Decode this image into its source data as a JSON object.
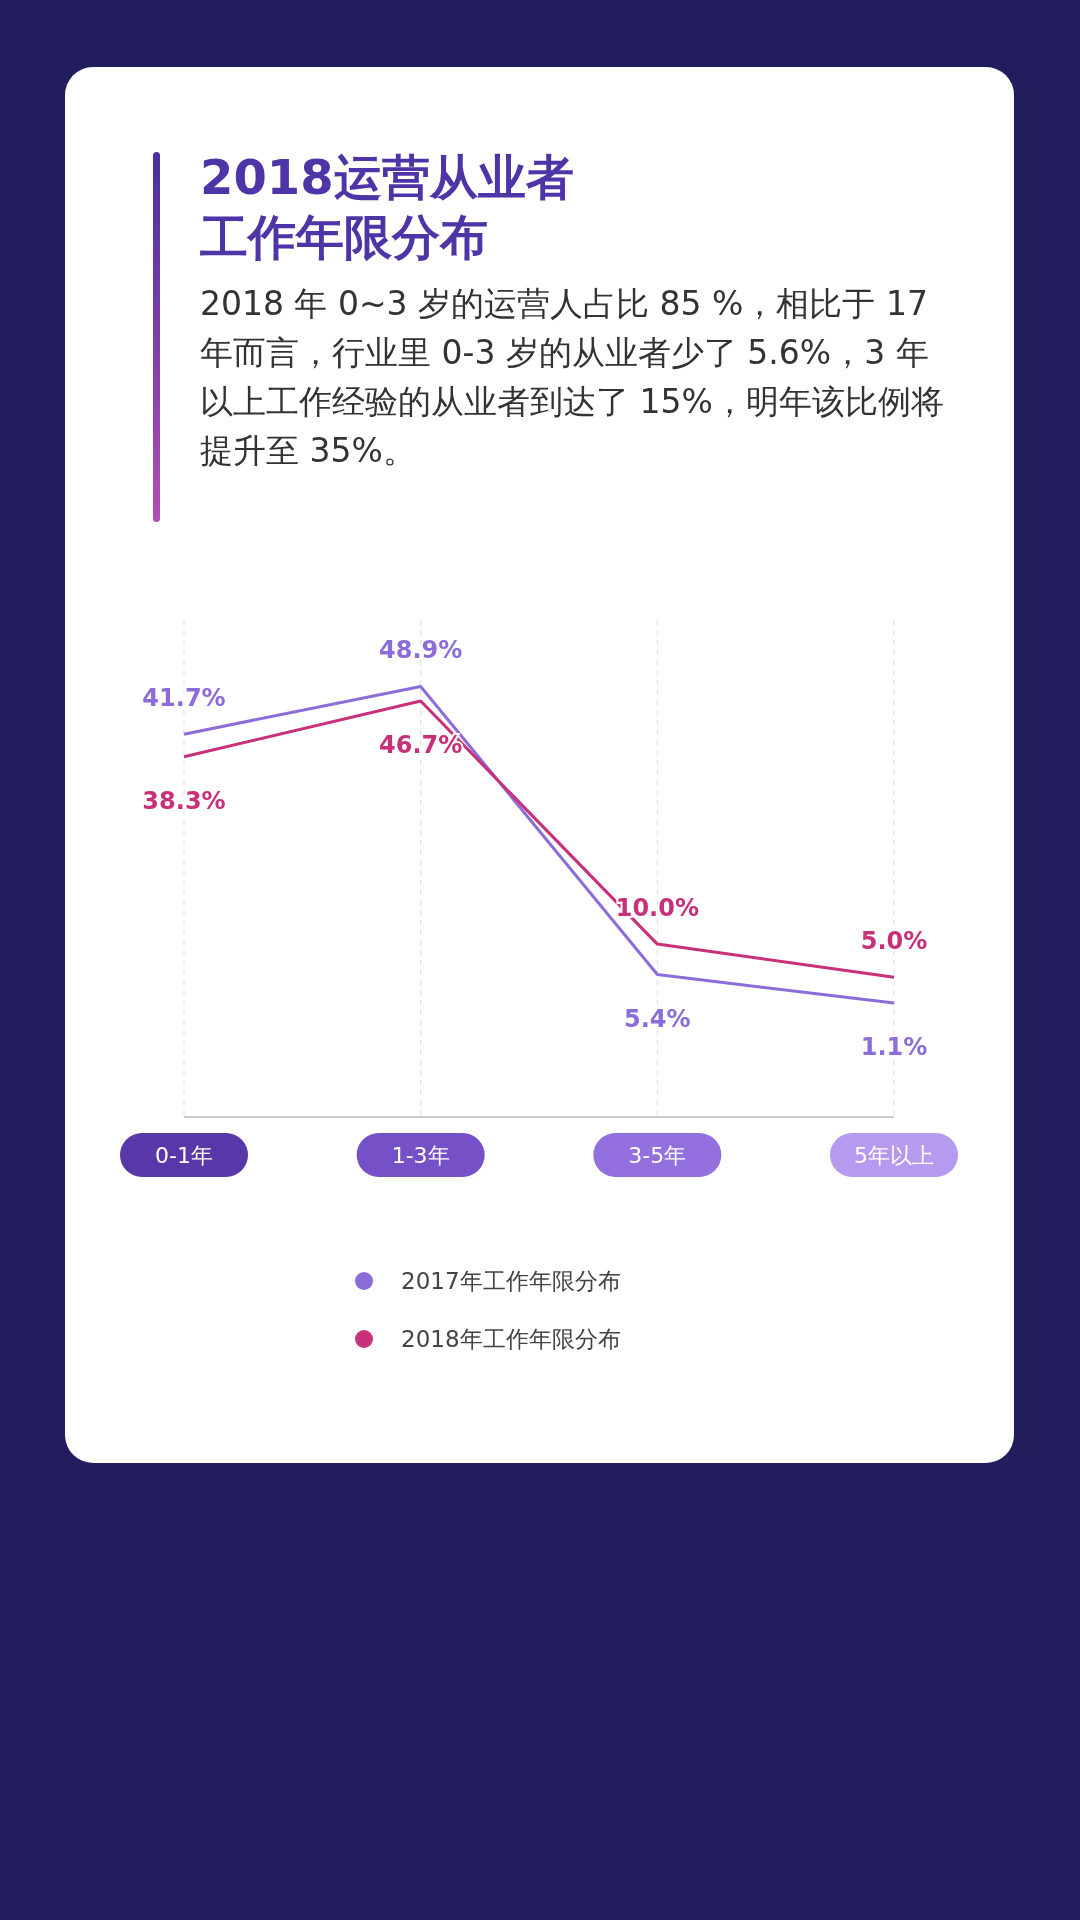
{
  "chart_data": {
    "type": "line",
    "title": "2018运营从业者工作年限分布",
    "subtitle": "2018 年 0~3 岁的运营人占比 85 %，相比于 17 年而言，行业里 0-3 岁的从业者少了 5.6%，3 年以上工作经验的从业者到达了 15%，明年该比例将提升至 35%。",
    "categories": [
      "0-1年",
      "1-3年",
      "3-5年",
      "5年以上"
    ],
    "series": [
      {
        "name": "2017年工作年限分布",
        "color": "#8c6cd8",
        "values": [
          41.7,
          48.9,
          5.4,
          1.1
        ],
        "value_labels": [
          "41.7%",
          "48.9%",
          "5.4%",
          "1.1%"
        ]
      },
      {
        "name": "2018年工作年限分布",
        "color": "#c8307a",
        "values": [
          38.3,
          46.7,
          10.0,
          5.0
        ],
        "value_labels": [
          "38.3%",
          "46.7%",
          "10.0%",
          "5.0%"
        ]
      }
    ],
    "grid": "x",
    "legend": "bottom",
    "marker": "none",
    "tick_labels": "x"
  }
}
